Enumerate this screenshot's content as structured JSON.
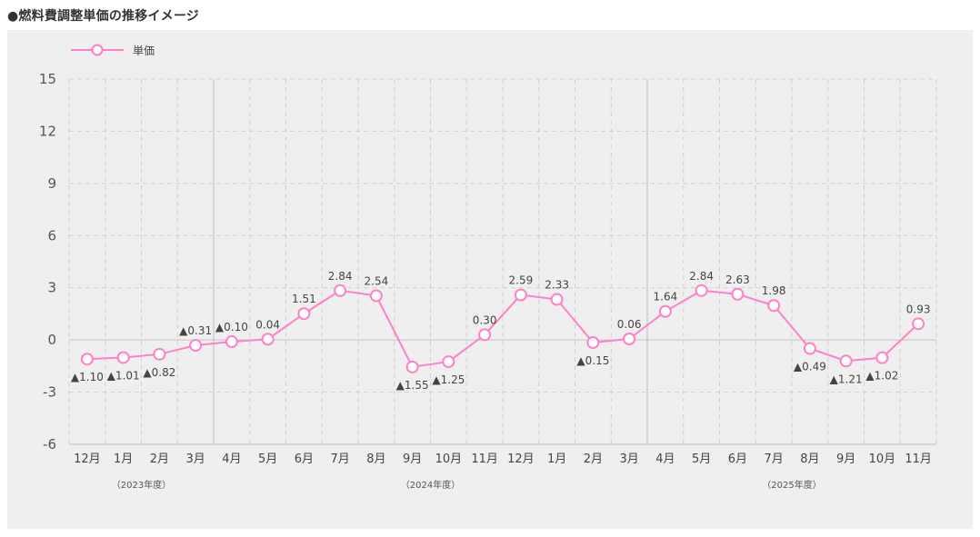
{
  "page": {
    "title": "●燃料費調整単価の推移イメージ"
  },
  "chart_data": {
    "type": "line",
    "legend": {
      "label": "単価",
      "placement": "top-left"
    },
    "colors": {
      "line": "#ff80c8",
      "panel": "#efefef",
      "grid": "#d0d0d0",
      "zero": "#c4c4c4"
    },
    "ylim": [
      -6,
      15
    ],
    "yticks": [
      "-6",
      "-3",
      "0",
      "3",
      "6",
      "9",
      "12",
      "15"
    ],
    "ytick_values": [
      -6,
      -3,
      0,
      3,
      6,
      9,
      12,
      15
    ],
    "categories": [
      "12月",
      "1月",
      "2月",
      "3月",
      "4月",
      "5月",
      "6月",
      "7月",
      "8月",
      "9月",
      "10月",
      "11月",
      "12月",
      "1月",
      "2月",
      "3月",
      "4月",
      "5月",
      "6月",
      "7月",
      "8月",
      "9月",
      "10月",
      "11月"
    ],
    "fiscal_years": [
      {
        "label": "（2023年度）",
        "start": 0,
        "end": 3
      },
      {
        "label": "（2024年度）",
        "start": 4,
        "end": 15
      },
      {
        "label": "（2025年度）",
        "start": 16,
        "end": 23
      }
    ],
    "year_dividers_after_index": [
      3,
      15
    ],
    "series": [
      {
        "name": "単価",
        "values": [
          -1.1,
          -1.01,
          -0.82,
          -0.31,
          -0.1,
          0.04,
          1.51,
          2.84,
          2.54,
          -1.55,
          -1.25,
          0.3,
          2.59,
          2.33,
          -0.15,
          0.06,
          1.64,
          2.84,
          2.63,
          1.98,
          -0.49,
          -1.21,
          -1.02,
          0.93
        ],
        "labels": [
          "▲1.10",
          "▲1.01",
          "▲0.82",
          "▲0.31",
          "▲0.10",
          "0.04",
          "1.51",
          "2.84",
          "2.54",
          "▲1.55",
          "▲1.25",
          "0.30",
          "2.59",
          "2.33",
          "▲0.15",
          "0.06",
          "1.64",
          "2.84",
          "2.63",
          "1.98",
          "▲0.49",
          "▲1.21",
          "▲1.02",
          "0.93"
        ],
        "label_position": [
          "below",
          "below",
          "below",
          "above",
          "above",
          "above",
          "above",
          "above",
          "above",
          "below",
          "below",
          "above",
          "above",
          "above",
          "below",
          "above",
          "above",
          "above",
          "above",
          "above",
          "below",
          "below",
          "below",
          "above"
        ]
      }
    ]
  }
}
